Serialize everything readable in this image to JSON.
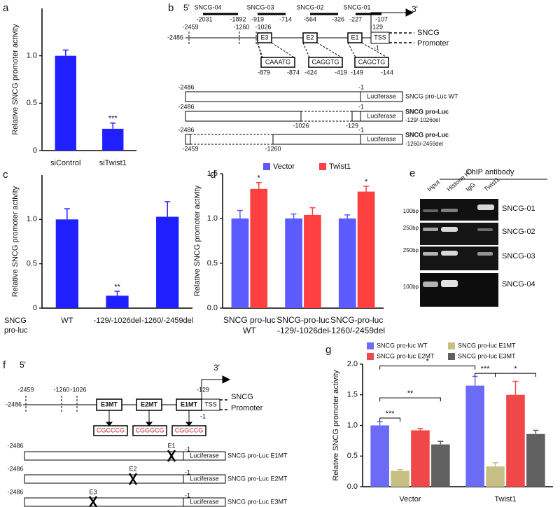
{
  "panel_letters": [
    "a",
    "b",
    "c",
    "d",
    "e",
    "f",
    "g"
  ],
  "chart_data": [
    {
      "type": "bar",
      "ylabel": "Relative SNCG promoter activity",
      "categories": [
        "siControl",
        "siTwist1"
      ],
      "values": [
        1.0,
        0.23
      ],
      "errors": [
        0.06,
        0.06
      ],
      "color": "#1f1fff",
      "ylim": [
        0,
        1.5
      ],
      "yticks": [
        0,
        0.5,
        {
          "value": 1,
          "label": "1.0"
        }
      ],
      "annotations": [
        "***"
      ]
    },
    {
      "type": "bar",
      "ylabel": "Relative SNCG promoter activity",
      "row_label": [
        "SNCG",
        "pro-luc"
      ],
      "categories": [
        "WT",
        "-129/-1026del",
        "-1260/-2459del"
      ],
      "values": [
        1.0,
        0.14,
        1.03
      ],
      "errors": [
        0.12,
        0.05,
        0.17
      ],
      "color": "#1f1fff",
      "ylim": [
        0,
        1.5
      ],
      "yticks": [
        0,
        0.5,
        {
          "value": 1,
          "label": "1.0"
        }
      ],
      "annotations": [
        "**"
      ]
    },
    {
      "type": "bar",
      "ylabel": "Relative SNCG promoter activity",
      "categories": [
        [
          "SNCG pro-luc",
          "WT"
        ],
        [
          "SNCG-pro-luc",
          "-129/-1026del"
        ],
        [
          "SNCG-pro-luc",
          "-1260/-2459del"
        ]
      ],
      "series": [
        {
          "name": "Vector",
          "color": "#5b5bff",
          "values": [
            1.0,
            1.0,
            1.0
          ],
          "errors": [
            0.09,
            0.05,
            0.04
          ]
        },
        {
          "name": "Twist1",
          "color": "#ff4040",
          "values": [
            1.33,
            1.04,
            1.3
          ],
          "errors": [
            0.07,
            0.08,
            0.06
          ]
        }
      ],
      "ylim": [
        0,
        1.5
      ],
      "yticks": [
        {
          "value": 0,
          "label": "0.0"
        },
        0.5,
        {
          "value": 1,
          "label": "1.0"
        },
        1.5
      ],
      "annotations": [
        "*",
        "*"
      ]
    },
    {
      "type": "bar",
      "ylabel": "Relative SNCG promoter activity",
      "categories": [
        "Vector",
        "Twist1"
      ],
      "series": [
        {
          "name": "SNCG pro-luc WT",
          "color": "#6b6bf5",
          "values": [
            1.0,
            1.65
          ],
          "errors": [
            0.06,
            0.15
          ]
        },
        {
          "name": "SNCG pro-luc E1MT",
          "color": "#c8bf85",
          "values": [
            0.26,
            0.33
          ],
          "errors": [
            0.02,
            0.06
          ]
        },
        {
          "name": "SNCG pro-luc E2MT",
          "color": "#f04848",
          "values": [
            0.92,
            1.5
          ],
          "errors": [
            0.03,
            0.22
          ]
        },
        {
          "name": "SNCG pro-luc E3MT",
          "color": "#606060",
          "values": [
            0.69,
            0.86
          ],
          "errors": [
            0.05,
            0.06
          ]
        }
      ],
      "ylim": [
        0,
        2
      ],
      "yticks": [
        {
          "value": 0,
          "label": "0.0"
        },
        0.5,
        {
          "value": 1,
          "label": "1.0"
        },
        1.5,
        {
          "value": 2,
          "label": "2.0"
        }
      ],
      "annotations": [
        "*",
        "**",
        "***",
        "***",
        "*"
      ]
    }
  ],
  "panel_b": {
    "labels": [
      "5'",
      "3'",
      "SNCG-04",
      "SNCG-03",
      "SNCG-02",
      "SNCG-01",
      "-2031",
      "-1892",
      "-919",
      "-714",
      "-564",
      "-326",
      "-227",
      "-107",
      "-2459",
      "-1260",
      "-1026",
      "-129",
      "-2486",
      "E3",
      "E2",
      "E1",
      "TSS",
      "SNCG",
      "Promoter",
      "-1",
      "CAAATG",
      "CAGGTG",
      "CAGCTG",
      "-879",
      "-874",
      "-424",
      "-419",
      "-149",
      "-144",
      "-2486",
      "-1",
      "Luciferase",
      "SNCG pro-Luc WT",
      "-2486",
      "-1",
      "Luciferase",
      "SNCG pro-Luc",
      "-129/-1026del",
      "-1026",
      "-129",
      "-2486",
      "-1",
      "Luciferase",
      "SNCG pro-Luc",
      "-1260/-2459del",
      "-2459",
      "-1260"
    ]
  },
  "panel_e": {
    "labels": [
      "ChIP antibody",
      "Input",
      "Histone H3",
      "IgG",
      "Twist1",
      "100bp",
      "250bp",
      "250bp",
      "100bp",
      "SNCG-01",
      "SNCG-02",
      "SNCG-03",
      "SNCG-04"
    ]
  },
  "panel_f": {
    "labels": [
      "5'",
      "3'",
      "-2459",
      "-1260",
      "-1026",
      "-129",
      "-2486",
      "E3MT",
      "E2MT",
      "E1MT",
      "TSS",
      "SNCG",
      "Promoter",
      "-1",
      "CGCCCG",
      "CGGGCG",
      "CGGCCG",
      "-2486",
      "E1",
      "-1",
      "Luciferase",
      "SNCG pro-Luc E1MT",
      "-2486",
      "E2",
      "-1",
      "Luciferase",
      "SNCG pro-Luc E2MT",
      "-2486",
      "E3",
      "-1",
      "Luciferase",
      "SNCG pro-Luc E3MT"
    ]
  }
}
